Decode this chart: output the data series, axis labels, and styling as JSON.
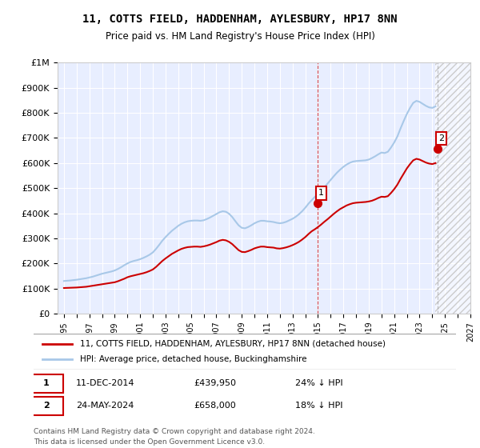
{
  "title": "11, COTTS FIELD, HADDENHAM, AYLESBURY, HP17 8NN",
  "subtitle": "Price paid vs. HM Land Registry's House Price Index (HPI)",
  "ylabel": "",
  "ylim": [
    0,
    1000000
  ],
  "yticks": [
    0,
    100000,
    200000,
    300000,
    400000,
    500000,
    600000,
    700000,
    800000,
    900000,
    1000000
  ],
  "ytick_labels": [
    "£0",
    "£100K",
    "£200K",
    "£300K",
    "£400K",
    "£500K",
    "£600K",
    "£700K",
    "£800K",
    "£900K",
    "£1M"
  ],
  "hpi_color": "#a8c8e8",
  "price_color": "#cc0000",
  "background_color": "#f0f4ff",
  "plot_bg": "#e8eeff",
  "legend_label_price": "11, COTTS FIELD, HADDENHAM, AYLESBURY, HP17 8NN (detached house)",
  "legend_label_hpi": "HPI: Average price, detached house, Buckinghamshire",
  "sale1_date_num": 2014.95,
  "sale1_price": 439950,
  "sale1_label": "1",
  "sale2_date_num": 2024.4,
  "sale2_price": 658000,
  "sale2_label": "2",
  "footer1": "Contains HM Land Registry data © Crown copyright and database right 2024.",
  "footer2": "This data is licensed under the Open Government Licence v3.0.",
  "annotation1": "1   11-DEC-2014        £439,950        24% ↓ HPI",
  "annotation2": "2   24-MAY-2024        £658,000        18% ↓ HPI",
  "hpi_data": {
    "years": [
      1995.0,
      1995.25,
      1995.5,
      1995.75,
      1996.0,
      1996.25,
      1996.5,
      1996.75,
      1997.0,
      1997.25,
      1997.5,
      1997.75,
      1998.0,
      1998.25,
      1998.5,
      1998.75,
      1999.0,
      1999.25,
      1999.5,
      1999.75,
      2000.0,
      2000.25,
      2000.5,
      2000.75,
      2001.0,
      2001.25,
      2001.5,
      2001.75,
      2002.0,
      2002.25,
      2002.5,
      2002.75,
      2003.0,
      2003.25,
      2003.5,
      2003.75,
      2004.0,
      2004.25,
      2004.5,
      2004.75,
      2005.0,
      2005.25,
      2005.5,
      2005.75,
      2006.0,
      2006.25,
      2006.5,
      2006.75,
      2007.0,
      2007.25,
      2007.5,
      2007.75,
      2008.0,
      2008.25,
      2008.5,
      2008.75,
      2009.0,
      2009.25,
      2009.5,
      2009.75,
      2010.0,
      2010.25,
      2010.5,
      2010.75,
      2011.0,
      2011.25,
      2011.5,
      2011.75,
      2012.0,
      2012.25,
      2012.5,
      2012.75,
      2013.0,
      2013.25,
      2013.5,
      2013.75,
      2014.0,
      2014.25,
      2014.5,
      2014.75,
      2015.0,
      2015.25,
      2015.5,
      2015.75,
      2016.0,
      2016.25,
      2016.5,
      2016.75,
      2017.0,
      2017.25,
      2017.5,
      2017.75,
      2018.0,
      2018.25,
      2018.5,
      2018.75,
      2019.0,
      2019.25,
      2019.5,
      2019.75,
      2020.0,
      2020.25,
      2020.5,
      2020.75,
      2021.0,
      2021.25,
      2021.5,
      2021.75,
      2022.0,
      2022.25,
      2022.5,
      2022.75,
      2023.0,
      2023.25,
      2023.5,
      2023.75,
      2024.0,
      2024.25
    ],
    "values": [
      130000,
      131000,
      132000,
      133500,
      135000,
      137000,
      139000,
      141000,
      144000,
      147000,
      151000,
      155000,
      159000,
      162000,
      165000,
      168000,
      172000,
      178000,
      185000,
      193000,
      200000,
      206000,
      210000,
      213000,
      217000,
      222000,
      228000,
      235000,
      244000,
      258000,
      274000,
      291000,
      305000,
      318000,
      330000,
      340000,
      350000,
      358000,
      364000,
      368000,
      370000,
      371000,
      371000,
      370000,
      372000,
      377000,
      383000,
      390000,
      397000,
      404000,
      408000,
      406000,
      398000,
      385000,
      368000,
      352000,
      342000,
      340000,
      345000,
      352000,
      360000,
      366000,
      370000,
      370000,
      368000,
      367000,
      365000,
      362000,
      360000,
      362000,
      366000,
      372000,
      378000,
      386000,
      396000,
      408000,
      422000,
      438000,
      452000,
      465000,
      477000,
      490000,
      504000,
      518000,
      533000,
      548000,
      562000,
      574000,
      585000,
      594000,
      601000,
      606000,
      608000,
      609000,
      610000,
      611000,
      614000,
      620000,
      627000,
      635000,
      642000,
      640000,
      645000,
      662000,
      682000,
      706000,
      738000,
      768000,
      796000,
      820000,
      840000,
      848000,
      844000,
      836000,
      828000,
      822000,
      820000,
      826000
    ]
  },
  "price_data": {
    "years": [
      1995.0,
      1995.25,
      1995.5,
      1995.75,
      1996.0,
      1996.25,
      1996.5,
      1996.75,
      1997.0,
      1997.25,
      1997.5,
      1997.75,
      1998.0,
      1998.25,
      1998.5,
      1998.75,
      1999.0,
      1999.25,
      1999.5,
      1999.75,
      2000.0,
      2000.25,
      2000.5,
      2000.75,
      2001.0,
      2001.25,
      2001.5,
      2001.75,
      2002.0,
      2002.25,
      2002.5,
      2002.75,
      2003.0,
      2003.25,
      2003.5,
      2003.75,
      2004.0,
      2004.25,
      2004.5,
      2004.75,
      2005.0,
      2005.25,
      2005.5,
      2005.75,
      2006.0,
      2006.25,
      2006.5,
      2006.75,
      2007.0,
      2007.25,
      2007.5,
      2007.75,
      2008.0,
      2008.25,
      2008.5,
      2008.75,
      2009.0,
      2009.25,
      2009.5,
      2009.75,
      2010.0,
      2010.25,
      2010.5,
      2010.75,
      2011.0,
      2011.25,
      2011.5,
      2011.75,
      2012.0,
      2012.25,
      2012.5,
      2012.75,
      2013.0,
      2013.25,
      2013.5,
      2013.75,
      2014.0,
      2014.25,
      2014.5,
      2014.75,
      2015.0,
      2015.25,
      2015.5,
      2015.75,
      2016.0,
      2016.25,
      2016.5,
      2016.75,
      2017.0,
      2017.25,
      2017.5,
      2017.75,
      2018.0,
      2018.25,
      2018.5,
      2018.75,
      2019.0,
      2019.25,
      2019.5,
      2019.75,
      2020.0,
      2020.25,
      2020.5,
      2020.75,
      2021.0,
      2021.25,
      2021.5,
      2021.75,
      2022.0,
      2022.25,
      2022.5,
      2022.75,
      2023.0,
      2023.25,
      2023.5,
      2023.75,
      2024.0,
      2024.25
    ],
    "values": [
      102000,
      102500,
      103000,
      103500,
      104000,
      105000,
      106000,
      107000,
      109000,
      111000,
      113000,
      115000,
      117000,
      119000,
      121000,
      123000,
      125000,
      129000,
      134000,
      139000,
      145000,
      149000,
      152000,
      155000,
      158000,
      161000,
      165000,
      170000,
      176000,
      186000,
      198000,
      210000,
      220000,
      229000,
      238000,
      245000,
      252000,
      258000,
      262000,
      265000,
      266000,
      267000,
      267000,
      266000,
      268000,
      271000,
      275000,
      280000,
      285000,
      291000,
      294000,
      292000,
      286000,
      277000,
      265000,
      253000,
      246000,
      245000,
      249000,
      254000,
      260000,
      264000,
      267000,
      267000,
      265000,
      264000,
      263000,
      260000,
      259000,
      261000,
      264000,
      268000,
      273000,
      279000,
      286000,
      295000,
      305000,
      317000,
      328000,
      336000,
      345000,
      355000,
      366000,
      376000,
      387000,
      398000,
      408000,
      417000,
      424000,
      431000,
      436000,
      440000,
      442000,
      443000,
      444000,
      445000,
      447000,
      450000,
      455000,
      461000,
      466000,
      465000,
      468000,
      481000,
      496000,
      514000,
      537000,
      558000,
      579000,
      596000,
      611000,
      617000,
      614000,
      608000,
      602000,
      598000,
      596000,
      600000
    ]
  }
}
